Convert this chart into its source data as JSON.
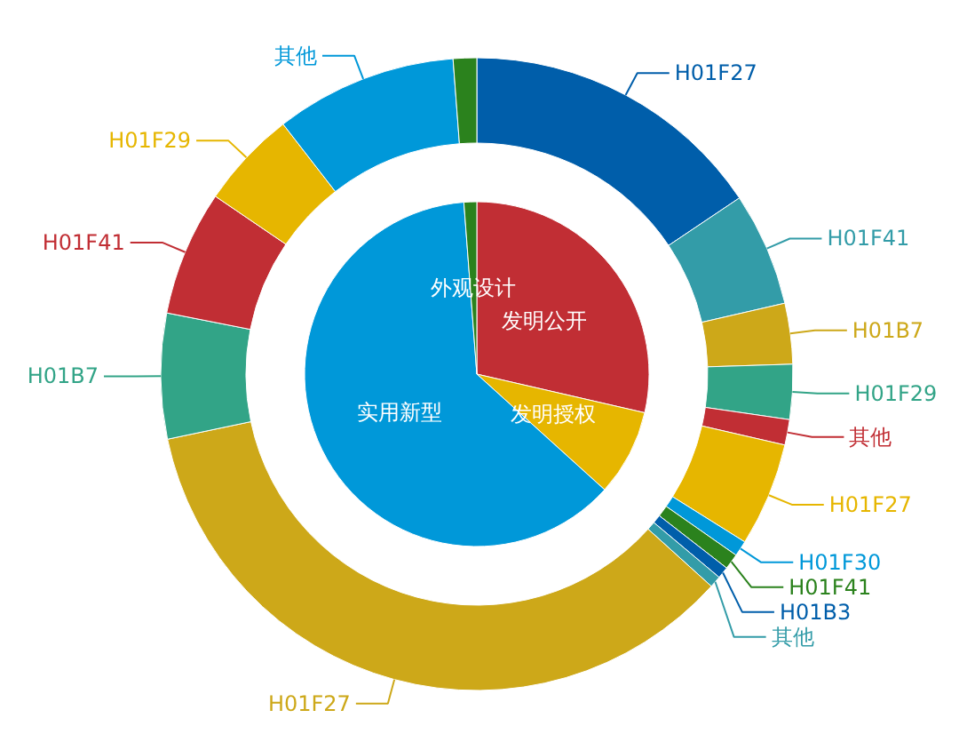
{
  "chart_data": [
    {
      "type": "pie",
      "categories": [
        "发明公开",
        "发明授权",
        "实用新型",
        "外观设计"
      ],
      "values": [
        28.6,
        8.1,
        62.1,
        1.2
      ],
      "colors": [
        "#c12e34",
        "#e6b600",
        "#0098d9",
        "#2b821d"
      ]
    },
    {
      "type": "donut",
      "categories": [
        "H01F27",
        "H01F41",
        "H01B7",
        "H01F29",
        "其他",
        "H01F27",
        "H01F30",
        "H01F41",
        "H01B3",
        "其他",
        "H01F27",
        "H01B7",
        "H01F41",
        "H01F29",
        "其他",
        null
      ],
      "values": [
        15.6,
        5.8,
        3.1,
        2.8,
        1.3,
        5.3,
        0.8,
        0.8,
        0.6,
        0.6,
        35.0,
        6.4,
        6.4,
        5.0,
        9.3,
        1.2
      ],
      "colors": [
        "#005eaa",
        "#339ca8",
        "#cda819",
        "#32a487",
        "#c12e34",
        "#e6b600",
        "#0098d9",
        "#2b821d",
        "#005eaa",
        "#339ca8",
        "#cda819",
        "#32a487",
        "#c12e34",
        "#e6b600",
        "#0098d9",
        "#2b821d"
      ]
    }
  ]
}
